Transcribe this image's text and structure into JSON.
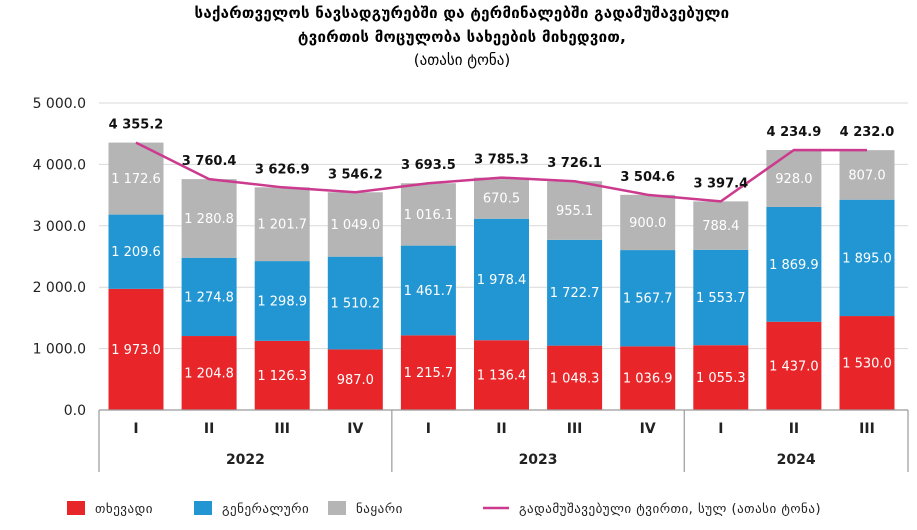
{
  "chart_data": {
    "type": "bar",
    "stacked": true,
    "title": [
      "საქართველოს ნავსადგურებში და ტერმინალებში გადამუშავებული",
      "ტვირთის მოცულობა სახეების მიხედვით,"
    ],
    "subtitle": "(ათასი ტონა)",
    "categories": [
      "I",
      "II",
      "III",
      "IV",
      "I",
      "II",
      "III",
      "IV",
      "I",
      "II",
      "III"
    ],
    "years": [
      {
        "label": "2022",
        "span": 4
      },
      {
        "label": "2023",
        "span": 4
      },
      {
        "label": "2024",
        "span": 3
      }
    ],
    "y_ticks": [
      "0.0",
      "1 000.0",
      "2 000.0",
      "3 000.0",
      "4 000.0",
      "5 000.0"
    ],
    "ylim": [
      0,
      5000
    ],
    "grid": true,
    "series": [
      {
        "name": "თხევადი",
        "color": "#e8262a",
        "values": [
          1973.0,
          1204.8,
          1126.3,
          987.0,
          1215.7,
          1136.4,
          1048.3,
          1036.9,
          1055.3,
          1437.0,
          1530.0
        ],
        "labels": [
          "1 973.0",
          "1 204.8",
          "1 126.3",
          "987.0",
          "1 215.7",
          "1 136.4",
          "1 048.3",
          "1 036.9",
          "1 055.3",
          "1 437.0",
          "1 530.0"
        ]
      },
      {
        "name": "გენერალური",
        "color": "#2196d3",
        "values": [
          1209.6,
          1274.8,
          1298.9,
          1510.2,
          1461.7,
          1978.4,
          1722.7,
          1567.7,
          1553.7,
          1869.9,
          1895.0
        ],
        "labels": [
          "1 209.6",
          "1 274.8",
          "1 298.9",
          "1 510.2",
          "1 461.7",
          "1 978.4",
          "1 722.7",
          "1 567.7",
          "1 553.7",
          "1 869.9",
          "1 895.0"
        ]
      },
      {
        "name": "ნაყარი",
        "color": "#b5b5b5",
        "values": [
          1172.6,
          1280.8,
          1201.7,
          1049.0,
          1016.1,
          670.5,
          955.1,
          900.0,
          788.4,
          928.0,
          807.0
        ],
        "labels": [
          "1 172.6",
          "1 280.8",
          "1 201.7",
          "1 049.0",
          "1 016.1",
          "670.5",
          "955.1",
          "900.0",
          "788.4",
          "928.0",
          "807.0"
        ]
      }
    ],
    "total": {
      "name": "გადამუშავებული ტვირთი, სულ (ათასი ტონა)",
      "color": "#cc3a8e",
      "values": [
        4355.2,
        3760.4,
        3626.9,
        3546.2,
        3693.5,
        3785.3,
        3726.1,
        3504.6,
        3397.4,
        4234.9,
        4232.0
      ],
      "labels": [
        "4 355.2",
        "3 760.4",
        "3 626.9",
        "3 546.2",
        "3 693.5",
        "3 785.3",
        "3 726.1",
        "3 504.6",
        "3 397.4",
        "4 234.9",
        "4 232.0"
      ]
    },
    "legend_position": "bottom"
  }
}
